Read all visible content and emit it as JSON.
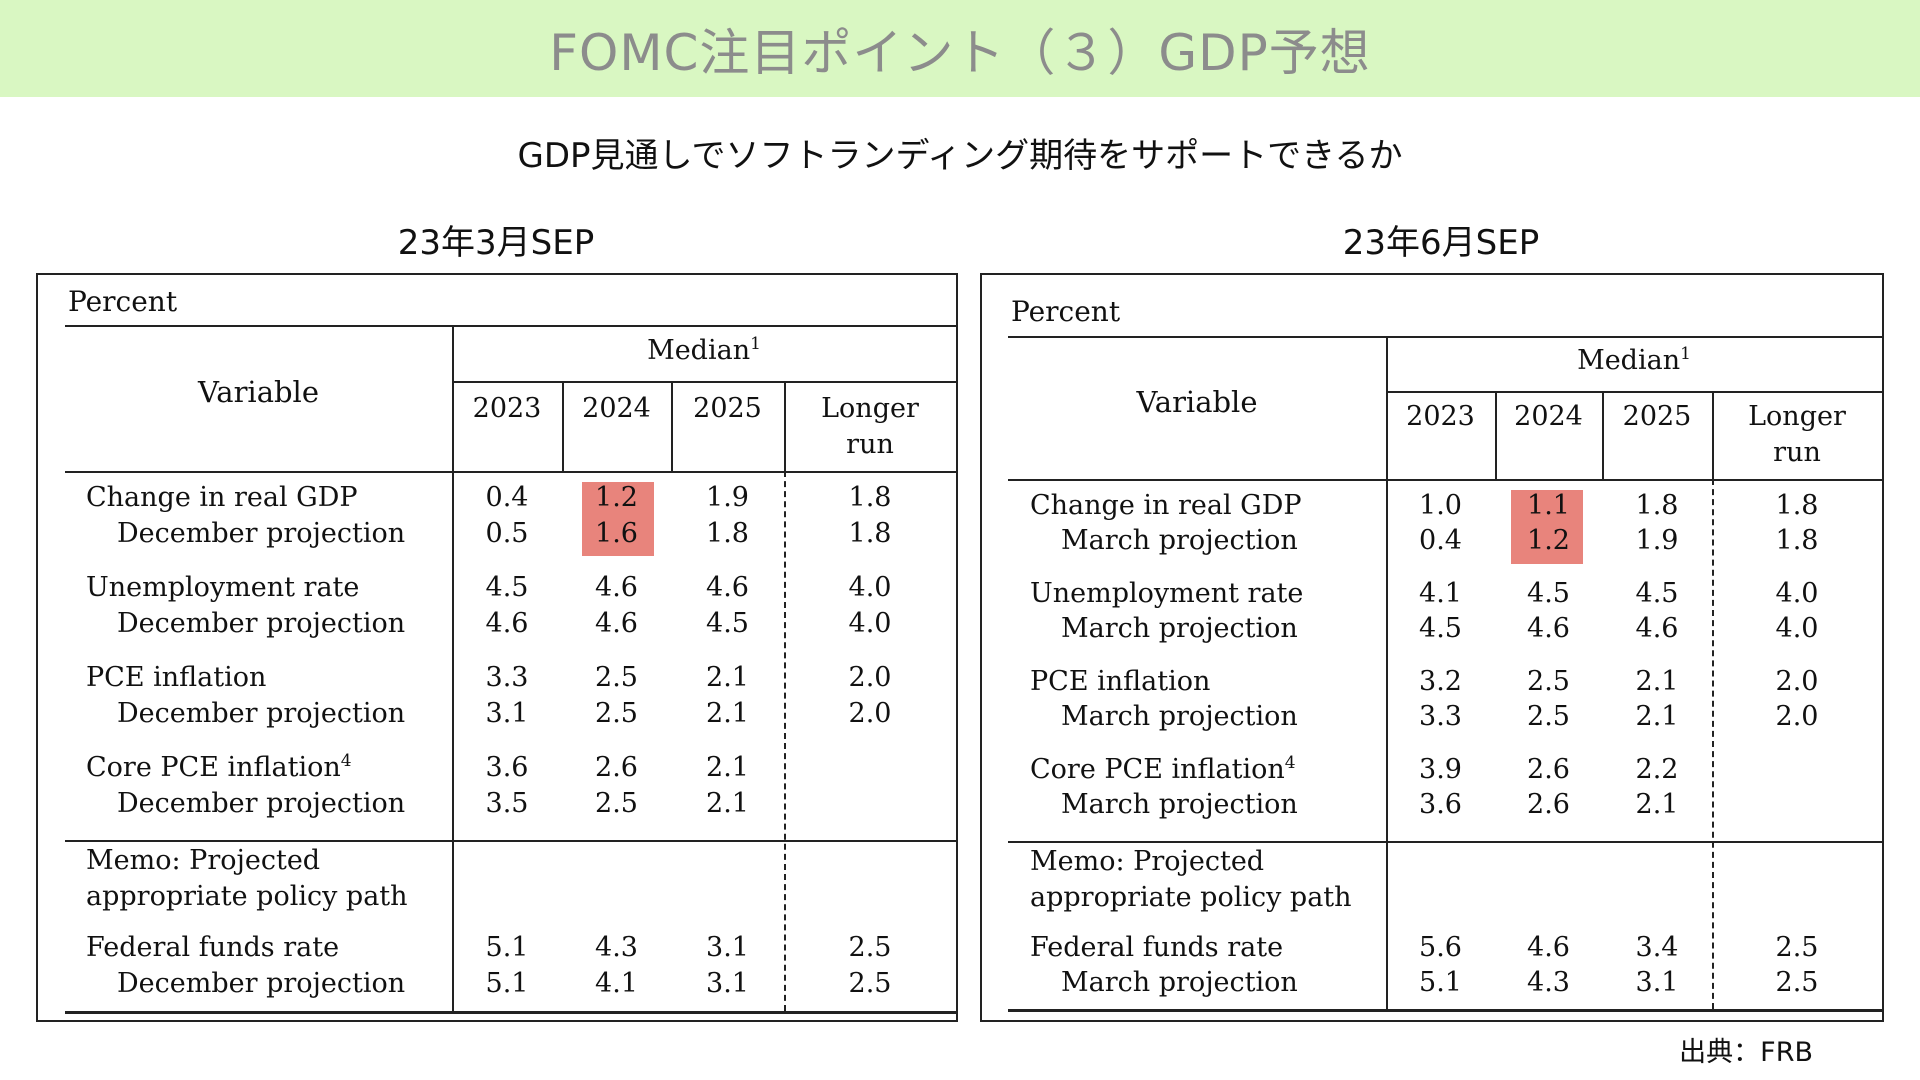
{
  "header": {
    "title": "FOMC注目ポイント（３）GDP予想",
    "subtitle": "GDP見通しでソフトランディング期待をサポートできるか",
    "source": "出典：FRB"
  },
  "colors": {
    "banner": "#d9f7c2",
    "highlight": "#e8847c"
  },
  "tables": [
    {
      "label": "23年3月SEP",
      "percent": "Percent",
      "variable_header": "Variable",
      "median_header": "Median",
      "median_sup": "1",
      "columns": [
        "2023",
        "2024",
        "2025",
        "Longer"
      ],
      "longer_run_second": "run",
      "highlighted_column": "2024",
      "rows": [
        {
          "label": "Change in real GDP",
          "sup": "",
          "values": [
            "0.4",
            "1.2",
            "1.9",
            "1.8"
          ]
        },
        {
          "label": "December projection",
          "sup": "",
          "values": [
            "0.5",
            "1.6",
            "1.8",
            "1.8"
          ]
        },
        {
          "label": "Unemployment rate",
          "sup": "",
          "values": [
            "4.5",
            "4.6",
            "4.6",
            "4.0"
          ]
        },
        {
          "label": "December projection",
          "sup": "",
          "values": [
            "4.6",
            "4.6",
            "4.5",
            "4.0"
          ]
        },
        {
          "label": "PCE inflation",
          "sup": "",
          "values": [
            "3.3",
            "2.5",
            "2.1",
            "2.0"
          ]
        },
        {
          "label": "December projection",
          "sup": "",
          "values": [
            "3.1",
            "2.5",
            "2.1",
            "2.0"
          ]
        },
        {
          "label": "Core PCE inflation",
          "sup": "4",
          "values": [
            "3.6",
            "2.6",
            "2.1",
            ""
          ]
        },
        {
          "label": "December projection",
          "sup": "",
          "values": [
            "3.5",
            "2.5",
            "2.1",
            ""
          ]
        }
      ],
      "memo_line1": "Memo: Projected",
      "memo_line2": "appropriate policy path",
      "ffr_rows": [
        {
          "label": "Federal funds rate",
          "values": [
            "5.1",
            "4.3",
            "3.1",
            "2.5"
          ]
        },
        {
          "label": "December projection",
          "values": [
            "5.1",
            "4.1",
            "3.1",
            "2.5"
          ]
        }
      ]
    },
    {
      "label": "23年6月SEP",
      "percent": "Percent",
      "variable_header": "Variable",
      "median_header": "Median",
      "median_sup": "1",
      "columns": [
        "2023",
        "2024",
        "2025",
        "Longer"
      ],
      "longer_run_second": "run",
      "highlighted_column": "2024",
      "rows": [
        {
          "label": "Change in real GDP",
          "sup": "",
          "values": [
            "1.0",
            "1.1",
            "1.8",
            "1.8"
          ]
        },
        {
          "label": "March projection",
          "sup": "",
          "values": [
            "0.4",
            "1.2",
            "1.9",
            "1.8"
          ]
        },
        {
          "label": "Unemployment rate",
          "sup": "",
          "values": [
            "4.1",
            "4.5",
            "4.5",
            "4.0"
          ]
        },
        {
          "label": "March projection",
          "sup": "",
          "values": [
            "4.5",
            "4.6",
            "4.6",
            "4.0"
          ]
        },
        {
          "label": "PCE inflation",
          "sup": "",
          "values": [
            "3.2",
            "2.5",
            "2.1",
            "2.0"
          ]
        },
        {
          "label": "March projection",
          "sup": "",
          "values": [
            "3.3",
            "2.5",
            "2.1",
            "2.0"
          ]
        },
        {
          "label": "Core PCE inflation",
          "sup": "4",
          "values": [
            "3.9",
            "2.6",
            "2.2",
            ""
          ]
        },
        {
          "label": "March projection",
          "sup": "",
          "values": [
            "3.6",
            "2.6",
            "2.1",
            ""
          ]
        }
      ],
      "memo_line1": "Memo: Projected",
      "memo_line2": "appropriate policy path",
      "ffr_rows": [
        {
          "label": "Federal funds rate",
          "values": [
            "5.6",
            "4.6",
            "3.4",
            "2.5"
          ]
        },
        {
          "label": "March projection",
          "values": [
            "5.1",
            "4.3",
            "3.1",
            "2.5"
          ]
        }
      ]
    }
  ]
}
